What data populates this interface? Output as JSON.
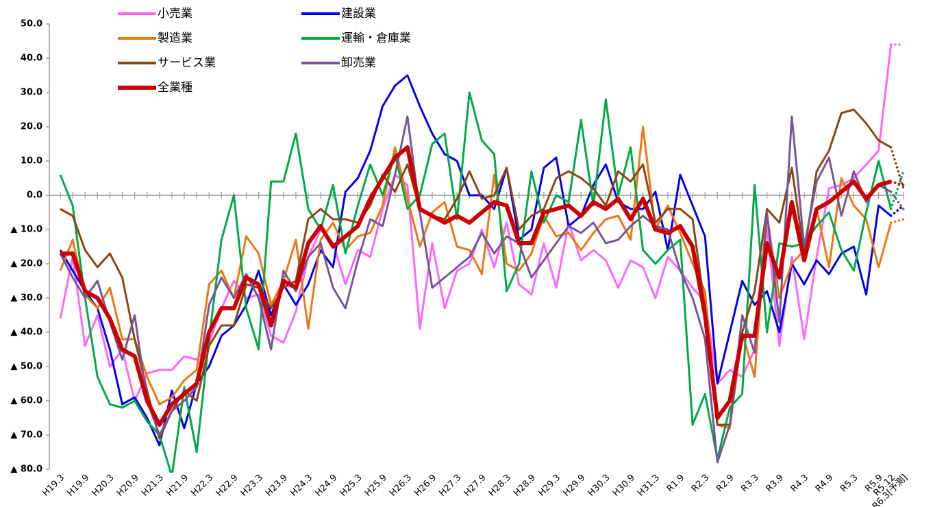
{
  "chart_data": {
    "type": "line",
    "categories": [
      "H19.3",
      null,
      "H19.9",
      null,
      "H20.3",
      null,
      "H20.9",
      null,
      "H21.3",
      null,
      "H21.9",
      null,
      "H22.3",
      null,
      "H22.9",
      null,
      "H23.3",
      null,
      "H23.9",
      null,
      "H24.3",
      null,
      "H24.9",
      null,
      "H25.3",
      null,
      "H25.9",
      null,
      "H26.3",
      null,
      "H26.9",
      null,
      "H27.3",
      null,
      "H27.9",
      null,
      "H28.3",
      null,
      "H28.9",
      null,
      "H29.3",
      null,
      "H29.9",
      null,
      "H30.3",
      null,
      "H30.9",
      null,
      "H31.3",
      null,
      "R1.9",
      null,
      "R2.3",
      null,
      "R2.9",
      null,
      "R3.3",
      null,
      "R3.9",
      null,
      "R4.3",
      null,
      "R4.9",
      null,
      "R5.3",
      null,
      "R5.9",
      "R5.12",
      "R6.3[予測]"
    ],
    "series": [
      {
        "name": "小売業",
        "color": "#ff66ff",
        "values": [
          -36,
          -18,
          -44,
          -35,
          -50,
          -45,
          -60,
          -52,
          -51,
          -51,
          -47,
          -48,
          -43,
          -33,
          -25,
          -30,
          -29,
          -41,
          -43,
          -34,
          -18,
          -10,
          -14,
          -26,
          -16,
          -18,
          -4,
          6,
          3,
          -39,
          -14,
          -33,
          -22,
          -20,
          -10,
          -21,
          -8,
          -26,
          -29,
          -14,
          -27,
          -8,
          -19,
          -16,
          -19,
          -27,
          -19,
          -21,
          -30,
          -18,
          -22,
          -27,
          -31,
          -55,
          -51,
          -53,
          -45,
          -9,
          -44,
          -18,
          -42,
          -18,
          2,
          3,
          5,
          9,
          13,
          44,
          44
        ]
      },
      {
        "name": "建設業",
        "color": "#0000ee",
        "values": [
          -16,
          -22,
          -28,
          -33,
          -45,
          -61,
          -59,
          -65,
          -73,
          -57,
          -68,
          -55,
          -50,
          -41,
          -38,
          -32,
          -22,
          -35,
          -26,
          -32,
          -26,
          -16,
          -21,
          1,
          5,
          13,
          26,
          32,
          35,
          26,
          18,
          12,
          10,
          0,
          0,
          -4,
          8,
          -13,
          -10,
          8,
          11,
          -9,
          -6,
          3,
          9,
          -2,
          -4,
          -4,
          1,
          -16,
          6,
          -3,
          -12,
          -55,
          -40,
          -25,
          -32,
          -28,
          -40,
          -20,
          -26,
          -19,
          -23,
          -17,
          -15,
          -29,
          -3,
          -6,
          -3
        ]
      },
      {
        "name": "製造業",
        "color": "#ee7711",
        "values": [
          -22,
          -13,
          -29,
          -33,
          -27,
          -42,
          -42,
          -53,
          -61,
          -59,
          -54,
          -51,
          -26,
          -22,
          -30,
          -12,
          -17,
          -32,
          -25,
          -13,
          -39,
          -13,
          -8,
          -16,
          -12,
          -11,
          -3,
          14,
          -1,
          -15,
          -5,
          -2,
          -15,
          -16,
          -23,
          6,
          -20,
          -22,
          -17,
          -6,
          -12,
          -11,
          -16,
          -11,
          -7,
          -6,
          -13,
          20,
          -10,
          -3,
          -11,
          -20,
          -28,
          -67,
          -68,
          -40,
          -53,
          -6,
          -30,
          -20,
          -16,
          -4,
          -21,
          5,
          -3,
          -7,
          -21,
          -8,
          -7
        ]
      },
      {
        "name": "運輸・倉庫業",
        "color": "#00aa44",
        "values": [
          6,
          -3,
          -30,
          -53,
          -61,
          -62,
          -60,
          -66,
          -70,
          -82,
          -56,
          -75,
          -42,
          -13,
          0,
          -33,
          -45,
          4,
          4,
          18,
          -4,
          -10,
          3,
          -17,
          -3,
          9,
          0,
          12,
          -4,
          0,
          15,
          18,
          -7,
          30,
          16,
          12,
          -28,
          -20,
          7,
          -8,
          0,
          -2,
          22,
          -3,
          28,
          0,
          14,
          -16,
          -20,
          -16,
          -13,
          -67,
          -58,
          -77,
          -62,
          -58,
          3,
          -40,
          -14,
          -15,
          -14,
          -9,
          -5,
          -16,
          -22,
          -5,
          10,
          -4,
          7
        ]
      },
      {
        "name": "サービス業",
        "color": "#8b4513",
        "values": [
          -4,
          -6,
          -16,
          -21,
          -17,
          -24,
          -42,
          -57,
          -71,
          -63,
          -57,
          -60,
          -44,
          -38,
          -38,
          -26,
          -27,
          -33,
          -27,
          -25,
          -7,
          -4,
          -7,
          -7,
          -8,
          -3,
          6,
          1,
          9,
          -4,
          -6,
          -7,
          -1,
          7,
          -1,
          0,
          8,
          -10,
          -6,
          -4,
          5,
          7,
          5,
          2,
          -3,
          7,
          4,
          9,
          -8,
          -4,
          -4,
          -7,
          -33,
          -67,
          -67,
          -40,
          -28,
          -4,
          -8,
          8,
          -17,
          7,
          13,
          24,
          25,
          21,
          16,
          14,
          2
        ]
      },
      {
        "name": "卸売業",
        "color": "#775599",
        "values": [
          -17,
          -24,
          -30,
          -25,
          -37,
          -48,
          -35,
          -60,
          -70,
          -63,
          -60,
          -56,
          -32,
          -24,
          -30,
          -23,
          -30,
          -45,
          -22,
          -28,
          -18,
          -14,
          -27,
          -33,
          -19,
          -7,
          -9,
          6,
          23,
          -5,
          -27,
          -24,
          -21,
          -18,
          -11,
          -17,
          -12,
          -14,
          -24,
          -19,
          -14,
          -9,
          -11,
          -8,
          -14,
          -13,
          -9,
          -6,
          -9,
          -10,
          -22,
          -30,
          -42,
          -78,
          -67,
          -35,
          -46,
          -5,
          -37,
          23,
          -15,
          4,
          11,
          -6,
          7,
          -2,
          3,
          1,
          -4
        ]
      },
      {
        "name": "全業種",
        "color": "#cc0000",
        "values": [
          -17,
          -17,
          -28,
          -30,
          -36,
          -45,
          -47,
          -60,
          -67,
          -61,
          -58,
          -55,
          -40,
          -33,
          -33,
          -24,
          -26,
          -38,
          -25,
          -27,
          -14,
          -9,
          -15,
          -12,
          -9,
          -1,
          5,
          11,
          14,
          -4,
          -6,
          -8,
          -6,
          -8,
          -5,
          -2,
          -3,
          -14,
          -14,
          -5,
          -4,
          -3,
          -6,
          -2,
          -4,
          -1,
          -7,
          -1,
          -10,
          -11,
          -9,
          -15,
          -35,
          -65,
          -60,
          -41,
          -41,
          -14,
          -24,
          -2,
          -19,
          -4,
          -2,
          1,
          4,
          -1,
          3,
          4,
          3
        ]
      }
    ],
    "ylim": [
      -80,
      50
    ],
    "yticks": [
      {
        "value": -80,
        "label": "▲ 80.0"
      },
      {
        "value": -70,
        "label": "▲ 70.0"
      },
      {
        "value": -60,
        "label": "▲ 60.0"
      },
      {
        "value": -50,
        "label": "▲ 50.0"
      },
      {
        "value": -40,
        "label": "▲ 40.0"
      },
      {
        "value": -30,
        "label": "▲ 30.0"
      },
      {
        "value": -20,
        "label": "▲ 20.0"
      },
      {
        "value": -10,
        "label": "▲ 10.0"
      },
      {
        "value": 0,
        "label": "0.0"
      },
      {
        "value": 10,
        "label": "10.0"
      },
      {
        "value": 20,
        "label": "20.0"
      },
      {
        "value": 30,
        "label": "30.0"
      },
      {
        "value": 40,
        "label": "40.0"
      },
      {
        "value": 50,
        "label": "50.0"
      }
    ],
    "grid": false
  }
}
